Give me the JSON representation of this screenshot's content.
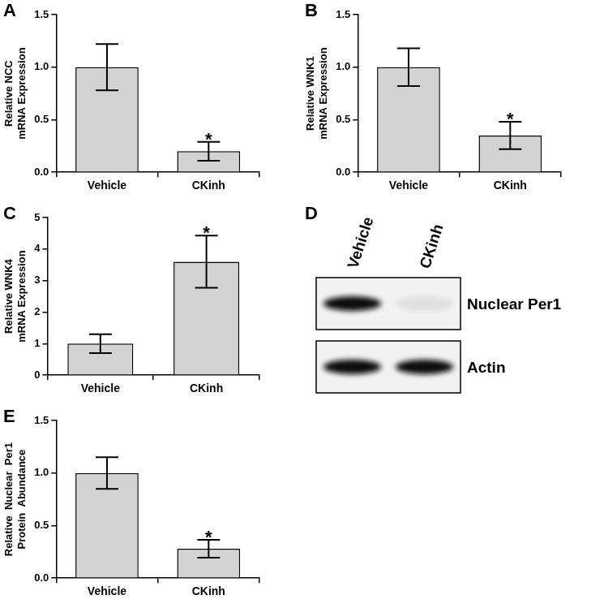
{
  "chart_data": [
    {
      "panel": "A",
      "type": "bar",
      "categories": [
        "Vehicle",
        "CKinh"
      ],
      "values": [
        1.0,
        0.2
      ],
      "errors": [
        0.22,
        0.09
      ],
      "color": "#d3d3d3",
      "y_label": [
        "Relative NCC",
        "mRNA Expression"
      ],
      "ylim": [
        0,
        1.5
      ],
      "yticks": [
        {
          "value": 0,
          "label": "0.0"
        },
        {
          "value": 0.5,
          "label": "0.5"
        },
        {
          "value": 1,
          "label": "1.0"
        },
        {
          "value": 1.5,
          "label": "1.5"
        }
      ],
      "grid": false,
      "annotations": [
        {
          "category": "CKinh",
          "text": "*"
        }
      ]
    },
    {
      "panel": "B",
      "type": "bar",
      "categories": [
        "Vehicle",
        "CKinh"
      ],
      "values": [
        1.0,
        0.35
      ],
      "errors": [
        0.18,
        0.13
      ],
      "color": "#d3d3d3",
      "y_label": [
        "Relative WNK1",
        "mRNA Expression"
      ],
      "ylim": [
        0,
        1.5
      ],
      "yticks": [
        {
          "value": 0,
          "label": "0.0"
        },
        {
          "value": 0.5,
          "label": "0.5"
        },
        {
          "value": 1,
          "label": "1.0"
        },
        {
          "value": 1.5,
          "label": "1.5"
        }
      ],
      "grid": false,
      "annotations": [
        {
          "category": "CKinh",
          "text": "*"
        }
      ]
    },
    {
      "panel": "C",
      "type": "bar",
      "categories": [
        "Vehicle",
        "CKinh"
      ],
      "values": [
        1.0,
        3.6
      ],
      "errors": [
        0.3,
        0.83
      ],
      "color": "#d3d3d3",
      "y_label": [
        "Relative WNK4",
        "mRNA Expression"
      ],
      "ylim": [
        0,
        5
      ],
      "yticks": [
        0,
        1,
        2,
        3,
        4,
        5
      ],
      "grid": false,
      "annotations": [
        {
          "category": "CKinh",
          "text": "*"
        }
      ]
    },
    {
      "panel": "E",
      "type": "bar",
      "categories": [
        "Vehicle",
        "CKinh"
      ],
      "values": [
        1.0,
        0.28
      ],
      "errors": [
        0.15,
        0.085
      ],
      "color": "#d3d3d3",
      "y_label": [
        "Relative  Nuclear  Per1",
        "Protein  Abundance"
      ],
      "ylim": [
        0,
        1.5
      ],
      "yticks": [
        {
          "value": 0,
          "label": "0.0"
        },
        {
          "value": 0.5,
          "label": "0.5"
        },
        {
          "value": 1,
          "label": "1.0"
        },
        {
          "value": 1.5,
          "label": "1.5"
        }
      ],
      "grid": false,
      "annotations": [
        {
          "category": "CKinh",
          "text": "*"
        }
      ]
    }
  ],
  "blot": {
    "panel": "D",
    "lanes": [
      "Vehicle",
      "CKinh"
    ],
    "rows": [
      {
        "label": "Nuclear Per1",
        "signal": [
          1,
          0.08
        ]
      },
      {
        "label": "Actin",
        "signal": [
          1,
          1
        ]
      }
    ]
  }
}
